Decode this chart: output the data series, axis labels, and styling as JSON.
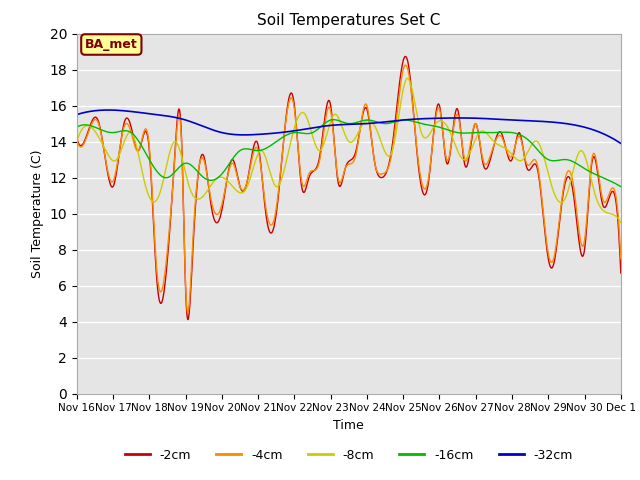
{
  "title": "Soil Temperatures Set C",
  "xlabel": "Time",
  "ylabel": "Soil Temperature (C)",
  "ylim": [
    0,
    20
  ],
  "yticks": [
    0,
    2,
    4,
    6,
    8,
    10,
    12,
    14,
    16,
    18,
    20
  ],
  "plot_bg_color": "#e5e5e5",
  "annotation_text": "BA_met",
  "annotation_bg": "#ffff99",
  "annotation_border": "#800000",
  "colors": {
    "-2cm": "#cc0000",
    "-4cm": "#ff8800",
    "-8cm": "#cccc00",
    "-16cm": "#00bb00",
    "-32cm": "#0000cc"
  },
  "tick_labels": [
    "Nov 16",
    "Nov 17",
    "Nov 18",
    "Nov 19",
    "Nov 20",
    "Nov 21",
    "Nov 22",
    "Nov 23",
    "Nov 24",
    "Nov 25",
    "Nov 26",
    "Nov 27",
    "Nov 28",
    "Nov 29",
    "Nov 30",
    "Dec 1"
  ],
  "tick_positions": [
    0,
    1,
    2,
    3,
    4,
    5,
    6,
    7,
    8,
    9,
    10,
    11,
    12,
    13,
    14,
    15
  ],
  "depth_2cm_knots_t": [
    0,
    0.3,
    0.6,
    0.9,
    1.0,
    1.3,
    1.5,
    1.7,
    2.0,
    2.2,
    2.5,
    2.7,
    2.9,
    3.0,
    3.2,
    3.5,
    3.7,
    4.0,
    4.3,
    4.5,
    4.7,
    5.0,
    5.2,
    5.5,
    5.7,
    6.0,
    6.2,
    6.4,
    6.7,
    7.0,
    7.2,
    7.4,
    7.7,
    8.0,
    8.2,
    8.4,
    8.7,
    9.0,
    9.15,
    9.4,
    9.7,
    10.0,
    10.2,
    10.5,
    10.7,
    11.0,
    11.2,
    11.4,
    11.7,
    12.0,
    12.2,
    12.4,
    12.7,
    13.0,
    13.15,
    13.4,
    13.7,
    14.0,
    14.2,
    14.5,
    14.7,
    15.0
  ],
  "depth_2cm_knots_v": [
    14.2,
    14.5,
    15.1,
    11.8,
    11.5,
    15.0,
    14.8,
    13.5,
    13.5,
    6.5,
    7.5,
    13.2,
    13.5,
    5.8,
    8.0,
    13.2,
    10.5,
    10.2,
    13.0,
    11.5,
    11.8,
    13.8,
    10.2,
    10.0,
    14.0,
    16.0,
    11.5,
    12.0,
    13.2,
    16.0,
    11.8,
    12.5,
    13.5,
    15.8,
    13.0,
    12.0,
    13.8,
    18.5,
    18.2,
    13.0,
    11.8,
    16.0,
    12.8,
    15.8,
    12.7,
    15.0,
    12.8,
    13.0,
    14.5,
    13.0,
    14.5,
    12.6,
    12.5,
    7.5,
    7.2,
    11.0,
    11.0,
    8.0,
    12.8,
    10.5,
    11.0,
    6.7
  ],
  "depth_4cm_knots_t": [
    0,
    0.3,
    0.6,
    0.9,
    1.0,
    1.3,
    1.5,
    1.7,
    2.0,
    2.2,
    2.5,
    2.7,
    2.9,
    3.0,
    3.2,
    3.5,
    3.7,
    4.0,
    4.3,
    4.5,
    4.7,
    5.0,
    5.2,
    5.5,
    5.7,
    6.0,
    6.2,
    6.4,
    6.7,
    7.0,
    7.2,
    7.4,
    7.7,
    8.0,
    8.2,
    8.4,
    8.7,
    9.0,
    9.15,
    9.4,
    9.7,
    10.0,
    10.2,
    10.5,
    10.7,
    11.0,
    11.2,
    11.4,
    11.7,
    12.0,
    12.2,
    12.4,
    12.7,
    13.0,
    13.15,
    13.4,
    13.7,
    14.0,
    14.2,
    14.5,
    14.7,
    15.0
  ],
  "depth_4cm_knots_v": [
    14.1,
    14.4,
    15.0,
    12.0,
    11.8,
    14.8,
    14.5,
    13.5,
    13.7,
    7.0,
    8.0,
    13.0,
    13.3,
    6.0,
    8.5,
    13.0,
    10.8,
    10.5,
    12.8,
    11.5,
    11.8,
    13.5,
    10.5,
    10.3,
    14.0,
    15.8,
    11.8,
    12.2,
    13.0,
    15.7,
    12.0,
    12.5,
    13.3,
    16.0,
    13.0,
    12.2,
    13.5,
    18.0,
    17.8,
    13.2,
    12.0,
    15.8,
    13.0,
    15.5,
    13.0,
    15.0,
    13.0,
    13.2,
    14.3,
    13.2,
    14.3,
    12.8,
    12.7,
    7.8,
    7.5,
    11.2,
    11.5,
    8.5,
    13.0,
    10.8,
    11.2,
    7.5
  ],
  "depth_8cm_knots_t": [
    0,
    0.4,
    0.8,
    1.1,
    1.5,
    1.9,
    2.3,
    2.7,
    3.1,
    3.5,
    3.9,
    4.3,
    4.7,
    5.1,
    5.5,
    5.9,
    6.3,
    6.7,
    7.1,
    7.5,
    7.9,
    8.3,
    8.7,
    9.1,
    9.5,
    9.9,
    10.3,
    10.7,
    11.1,
    11.5,
    11.9,
    12.3,
    12.7,
    13.1,
    13.5,
    13.9,
    14.3,
    14.7,
    15.0
  ],
  "depth_8cm_knots_v": [
    14.0,
    14.8,
    13.5,
    13.0,
    14.5,
    11.5,
    11.2,
    14.0,
    11.5,
    11.0,
    12.0,
    11.5,
    11.5,
    13.5,
    11.5,
    14.0,
    15.5,
    13.5,
    15.5,
    14.0,
    15.0,
    14.5,
    13.5,
    17.5,
    14.5,
    15.0,
    14.5,
    13.0,
    14.5,
    14.0,
    13.5,
    13.0,
    14.0,
    11.5,
    11.0,
    13.5,
    11.0,
    10.0,
    9.5
  ],
  "depth_16cm_knots_t": [
    0,
    0.5,
    1.0,
    1.5,
    2.0,
    2.5,
    3.0,
    3.5,
    4.0,
    4.5,
    5.0,
    5.5,
    6.0,
    6.5,
    7.0,
    7.5,
    8.0,
    8.5,
    9.0,
    9.5,
    10.0,
    10.5,
    11.0,
    11.5,
    12.0,
    12.5,
    13.0,
    13.5,
    14.0,
    14.5,
    15.0
  ],
  "depth_16cm_knots_v": [
    14.8,
    14.8,
    14.5,
    14.5,
    13.0,
    12.0,
    12.8,
    12.0,
    12.2,
    13.5,
    13.5,
    14.0,
    14.5,
    14.5,
    15.2,
    15.0,
    15.2,
    15.0,
    15.2,
    15.0,
    14.8,
    14.5,
    14.5,
    14.5,
    14.5,
    14.0,
    13.0,
    13.0,
    12.5,
    12.0,
    11.5
  ],
  "depth_32cm_knots_t": [
    0,
    1.0,
    2.0,
    3.0,
    4.0,
    5.0,
    6.0,
    7.0,
    8.0,
    9.0,
    10.0,
    11.0,
    12.0,
    13.0,
    14.0,
    15.0
  ],
  "depth_32cm_knots_v": [
    15.5,
    15.75,
    15.55,
    15.2,
    14.5,
    14.4,
    14.6,
    14.9,
    15.0,
    15.2,
    15.3,
    15.3,
    15.2,
    15.1,
    14.8,
    13.9
  ]
}
